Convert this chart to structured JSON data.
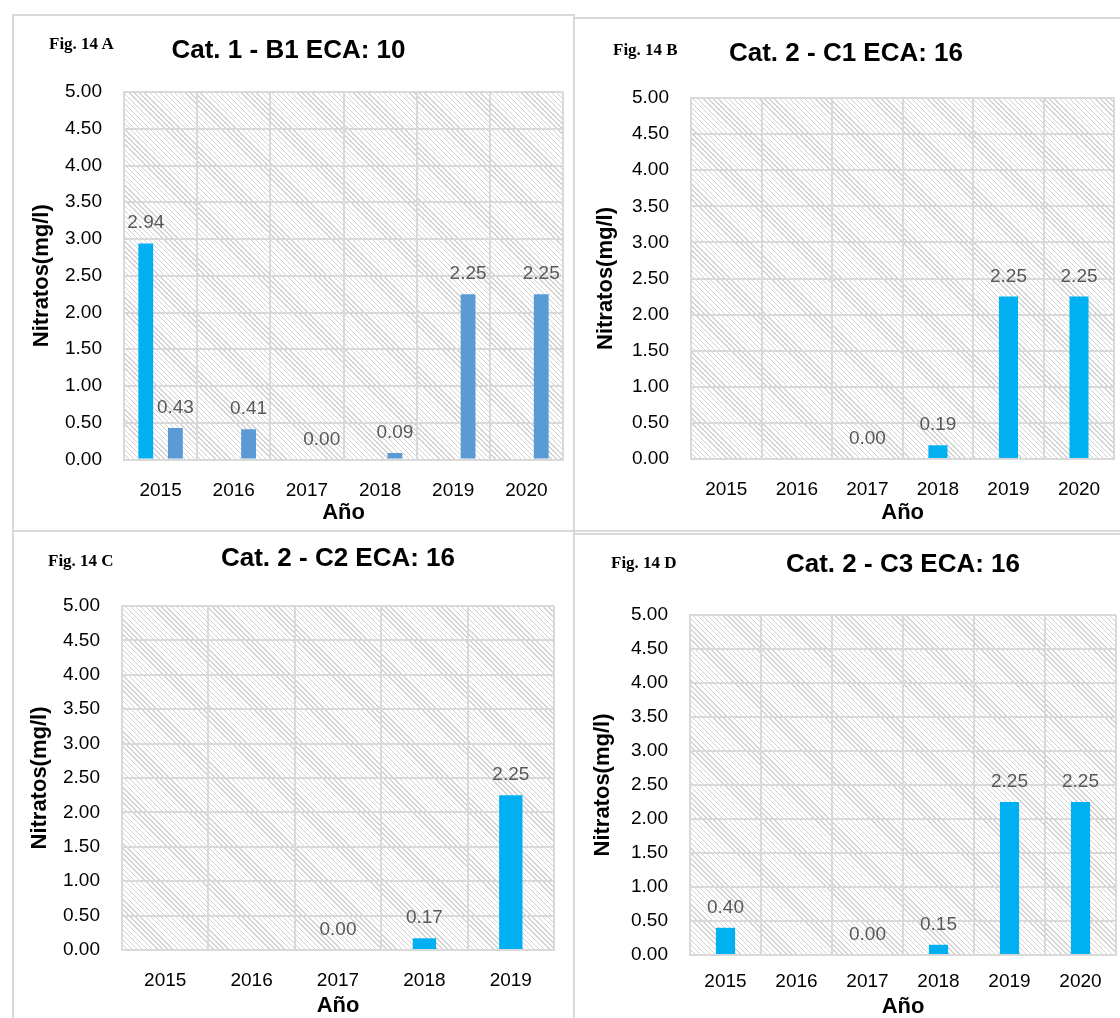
{
  "chart_data": [
    {
      "type": "bar",
      "title": "Cat. 1 - B1 ECA: 10",
      "xlabel": "Año",
      "ylabel": "Nitratos(mg/l)",
      "annotations": [
        "Fig. 14 A"
      ],
      "categories": [
        "2015",
        "2016",
        "2017",
        "2018",
        "2019",
        "2020"
      ],
      "series": [
        {
          "color": "#00b0f0",
          "values": [
            2.94,
            null,
            null,
            null,
            null,
            null
          ],
          "value_labels": [
            "2.94",
            null,
            null,
            null,
            null,
            null
          ]
        },
        {
          "color": "#5b9bd5",
          "values": [
            0.43,
            0.41,
            0,
            0.09,
            2.25,
            2.25
          ],
          "value_labels": [
            "0.43",
            "0.41",
            "0.00",
            "0.09",
            "2.25",
            "2.25"
          ]
        }
      ],
      "ylim": [
        0,
        5
      ],
      "yticks": [
        {
          "value": 0,
          "label": "0.00"
        },
        {
          "value": 0.5,
          "label": "0.50"
        },
        {
          "value": 1,
          "label": "1.00"
        },
        {
          "value": 1.5,
          "label": "1.50"
        },
        {
          "value": 2,
          "label": "2.00"
        },
        {
          "value": 2.5,
          "label": "2.50"
        },
        {
          "value": 3,
          "label": "3.00"
        },
        {
          "value": 3.5,
          "label": "3.50"
        },
        {
          "value": 4,
          "label": "4.00"
        },
        {
          "value": 4.5,
          "label": "4.50"
        },
        {
          "value": 5,
          "label": "5.00"
        }
      ],
      "grid": true
    },
    {
      "type": "bar",
      "title": "Cat. 2 - C1 ECA: 16",
      "xlabel": "Año",
      "ylabel": "Nitratos(mg/l)",
      "annotations": [
        "Fig. 14 B"
      ],
      "categories": [
        "2015",
        "2016",
        "2017",
        "2018",
        "2019",
        "2020"
      ],
      "series": [
        {
          "color": "#00b0f0",
          "values": [
            null,
            null,
            0,
            0.19,
            2.25,
            2.25
          ],
          "value_labels": [
            null,
            null,
            "0.00",
            "0.19",
            "2.25",
            "2.25"
          ]
        }
      ],
      "ylim": [
        0,
        5
      ],
      "yticks": [
        {
          "value": 0,
          "label": "0.00"
        },
        {
          "value": 0.5,
          "label": "0.50"
        },
        {
          "value": 1,
          "label": "1.00"
        },
        {
          "value": 1.5,
          "label": "1.50"
        },
        {
          "value": 2,
          "label": "2.00"
        },
        {
          "value": 2.5,
          "label": "2.50"
        },
        {
          "value": 3,
          "label": "3.00"
        },
        {
          "value": 3.5,
          "label": "3.50"
        },
        {
          "value": 4,
          "label": "4.00"
        },
        {
          "value": 4.5,
          "label": "4.50"
        },
        {
          "value": 5,
          "label": "5.00"
        }
      ],
      "grid": true
    },
    {
      "type": "bar",
      "title": "Cat. 2 - C2 ECA: 16",
      "xlabel": "Año",
      "ylabel": "Nitratos(mg/l)",
      "annotations": [
        "Fig. 14 C"
      ],
      "categories": [
        "2015",
        "2016",
        "2017",
        "2018",
        "2019"
      ],
      "series": [
        {
          "color": "#00b0f0",
          "values": [
            null,
            null,
            0,
            0.17,
            2.25
          ],
          "value_labels": [
            null,
            null,
            "0.00",
            "0.17",
            "2.25"
          ]
        }
      ],
      "ylim": [
        0,
        5
      ],
      "yticks": [
        {
          "value": 0,
          "label": "0.00"
        },
        {
          "value": 0.5,
          "label": "0.50"
        },
        {
          "value": 1,
          "label": "1.00"
        },
        {
          "value": 1.5,
          "label": "1.50"
        },
        {
          "value": 2,
          "label": "2.00"
        },
        {
          "value": 2.5,
          "label": "2.50"
        },
        {
          "value": 3,
          "label": "3.00"
        },
        {
          "value": 3.5,
          "label": "3.50"
        },
        {
          "value": 4,
          "label": "4.00"
        },
        {
          "value": 4.5,
          "label": "4.50"
        },
        {
          "value": 5,
          "label": "5.00"
        }
      ],
      "grid": true
    },
    {
      "type": "bar",
      "title": "Cat. 2 - C3 ECA: 16",
      "xlabel": "Año",
      "ylabel": "Nitratos(mg/l)",
      "annotations": [
        "Fig. 14 D"
      ],
      "categories": [
        "2015",
        "2016",
        "2017",
        "2018",
        "2019",
        "2020"
      ],
      "series": [
        {
          "color": "#00b0f0",
          "values": [
            0.4,
            null,
            0,
            0.15,
            2.25,
            2.25
          ],
          "value_labels": [
            "0.40",
            null,
            "0.00",
            "0.15",
            "2.25",
            "2.25"
          ]
        }
      ],
      "ylim": [
        0,
        5
      ],
      "yticks": [
        {
          "value": 0,
          "label": "0.00"
        },
        {
          "value": 0.5,
          "label": "0.50"
        },
        {
          "value": 1,
          "label": "1.00"
        },
        {
          "value": 1.5,
          "label": "1.50"
        },
        {
          "value": 2,
          "label": "2.00"
        },
        {
          "value": 2.5,
          "label": "2.50"
        },
        {
          "value": 3,
          "label": "3.00"
        },
        {
          "value": 3.5,
          "label": "3.50"
        },
        {
          "value": 4,
          "label": "4.00"
        },
        {
          "value": 4.5,
          "label": "4.50"
        },
        {
          "value": 5,
          "label": "5.00"
        }
      ],
      "grid": true
    }
  ]
}
